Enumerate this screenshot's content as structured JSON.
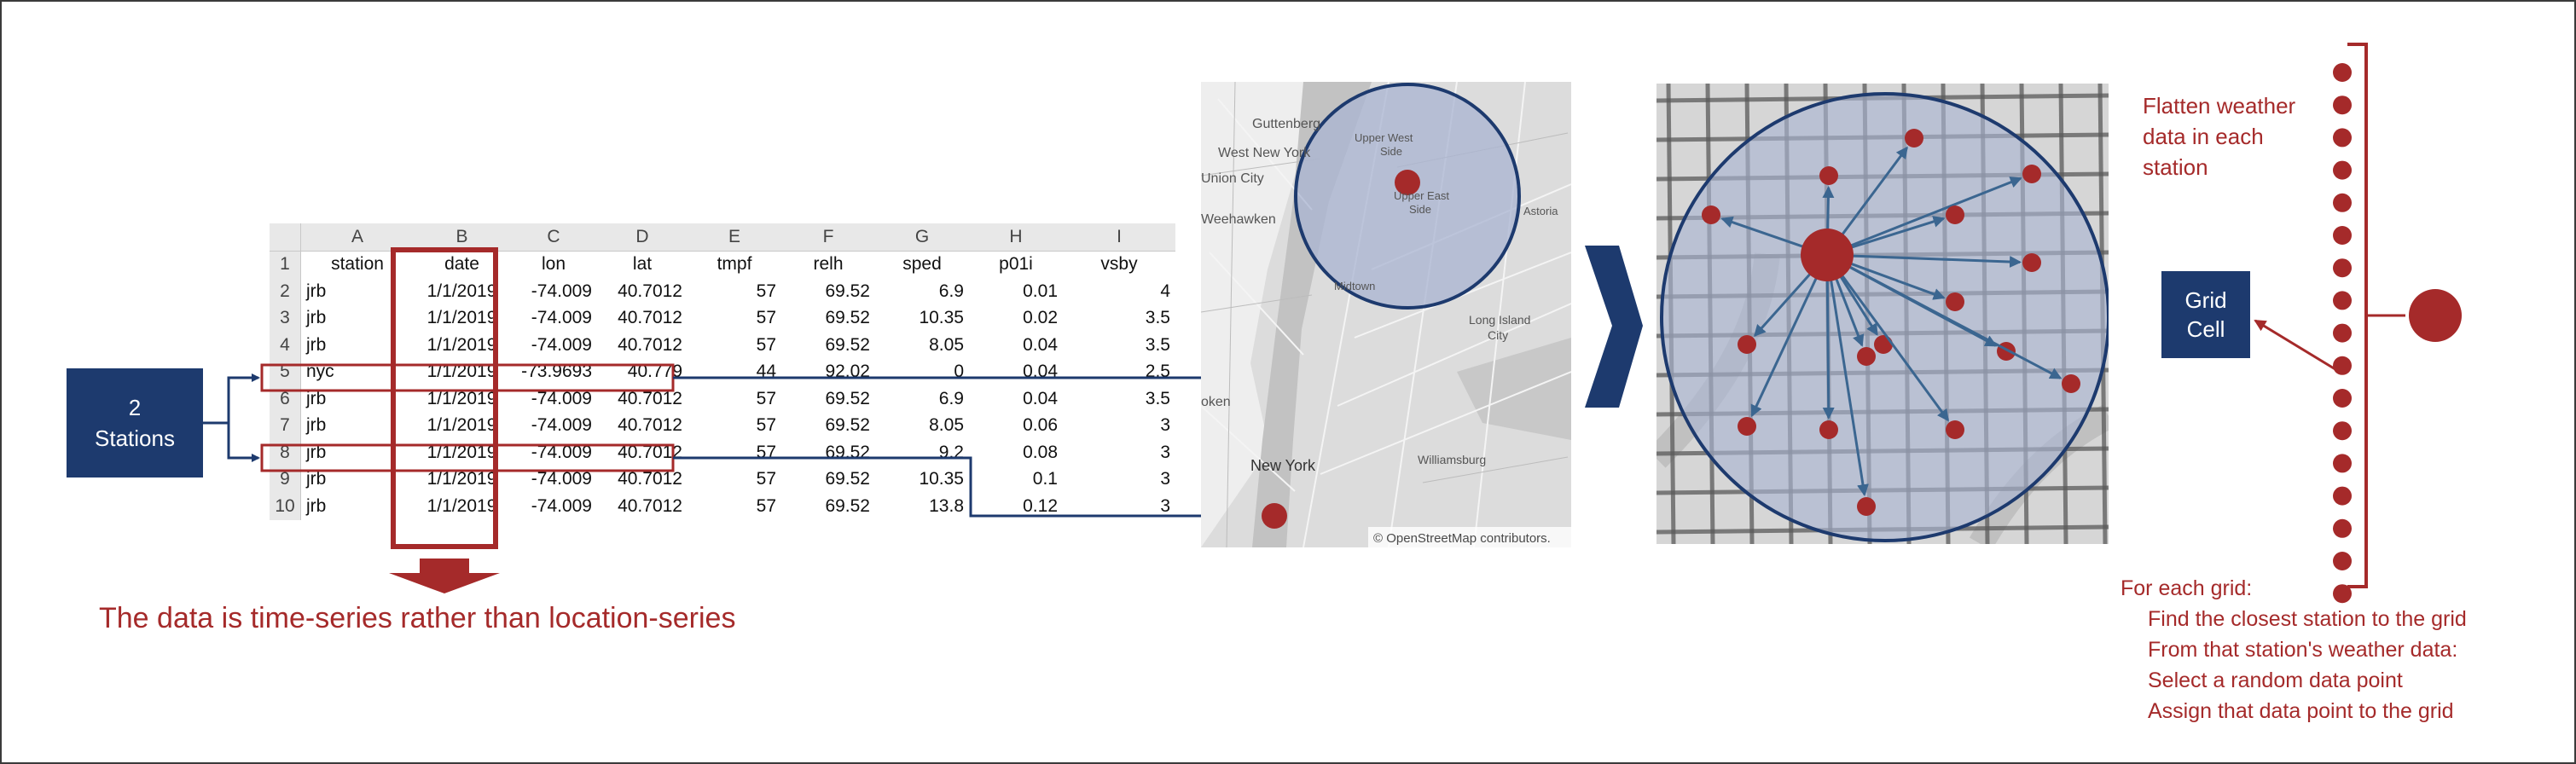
{
  "stations_box": {
    "line1": "2",
    "line2": "Stations"
  },
  "spreadsheet": {
    "col_letters": [
      "A",
      "B",
      "C",
      "D",
      "E",
      "F",
      "G",
      "H",
      "I"
    ],
    "columns": [
      "station",
      "date",
      "lon",
      "lat",
      "tmpf",
      "relh",
      "sped",
      "p01i",
      "vsby"
    ],
    "rows": [
      {
        "num": "2",
        "cells": [
          "jrb",
          "1/1/2019",
          "-74.009",
          "40.7012",
          "57",
          "69.52",
          "6.9",
          "0.01",
          "4"
        ]
      },
      {
        "num": "3",
        "cells": [
          "jrb",
          "1/1/2019",
          "-74.009",
          "40.7012",
          "57",
          "69.52",
          "10.35",
          "0.02",
          "3.5"
        ]
      },
      {
        "num": "4",
        "cells": [
          "jrb",
          "1/1/2019",
          "-74.009",
          "40.7012",
          "57",
          "69.52",
          "8.05",
          "0.04",
          "3.5"
        ]
      },
      {
        "num": "5",
        "cells": [
          "nyc",
          "1/1/2019",
          "-73.9693",
          "40.779",
          "44",
          "92.02",
          "0",
          "0.04",
          "2.5"
        ]
      },
      {
        "num": "6",
        "cells": [
          "jrb",
          "1/1/2019",
          "-74.009",
          "40.7012",
          "57",
          "69.52",
          "6.9",
          "0.04",
          "3.5"
        ]
      },
      {
        "num": "7",
        "cells": [
          "jrb",
          "1/1/2019",
          "-74.009",
          "40.7012",
          "57",
          "69.52",
          "8.05",
          "0.06",
          "3"
        ]
      },
      {
        "num": "8",
        "cells": [
          "jrb",
          "1/1/2019",
          "-74.009",
          "40.7012",
          "57",
          "69.52",
          "9.2",
          "0.08",
          "3"
        ]
      },
      {
        "num": "9",
        "cells": [
          "jrb",
          "1/1/2019",
          "-74.009",
          "40.7012",
          "57",
          "69.52",
          "10.35",
          "0.1",
          "3"
        ]
      },
      {
        "num": "10",
        "cells": [
          "jrb",
          "1/1/2019",
          "-74.009",
          "40.7012",
          "57",
          "69.52",
          "13.8",
          "0.12",
          "3"
        ]
      }
    ]
  },
  "caption": "The data is time-series rather than location-series",
  "map": {
    "labels": [
      "Guttenberg",
      "West New York",
      "Union City",
      "Weehawken",
      "Upper West",
      "Side",
      "Upper East",
      "Side",
      "Astoria",
      "Midtown",
      "Long Island",
      "City",
      "Williamsburg",
      "New York",
      "oken"
    ],
    "attribution_prefix": "© OpenStreetMap",
    "attribution_suffix": "contributors."
  },
  "grid_cell_box": {
    "line1": "Grid",
    "line2": "Cell"
  },
  "flatten_text": {
    "line1": "Flatten weather",
    "line2": "data in each",
    "line3": "station"
  },
  "steps": {
    "title": "For each grid:",
    "items": [
      "Find the closest station to the grid",
      "From that station's weather data:",
      "Select a random data point",
      "Assign that data point to the grid"
    ]
  },
  "colors": {
    "navy": "#1d3a6e",
    "red": "#a52a2a",
    "arrow_blue": "#3b6690",
    "map_circle_fill": "#aab4d2"
  }
}
